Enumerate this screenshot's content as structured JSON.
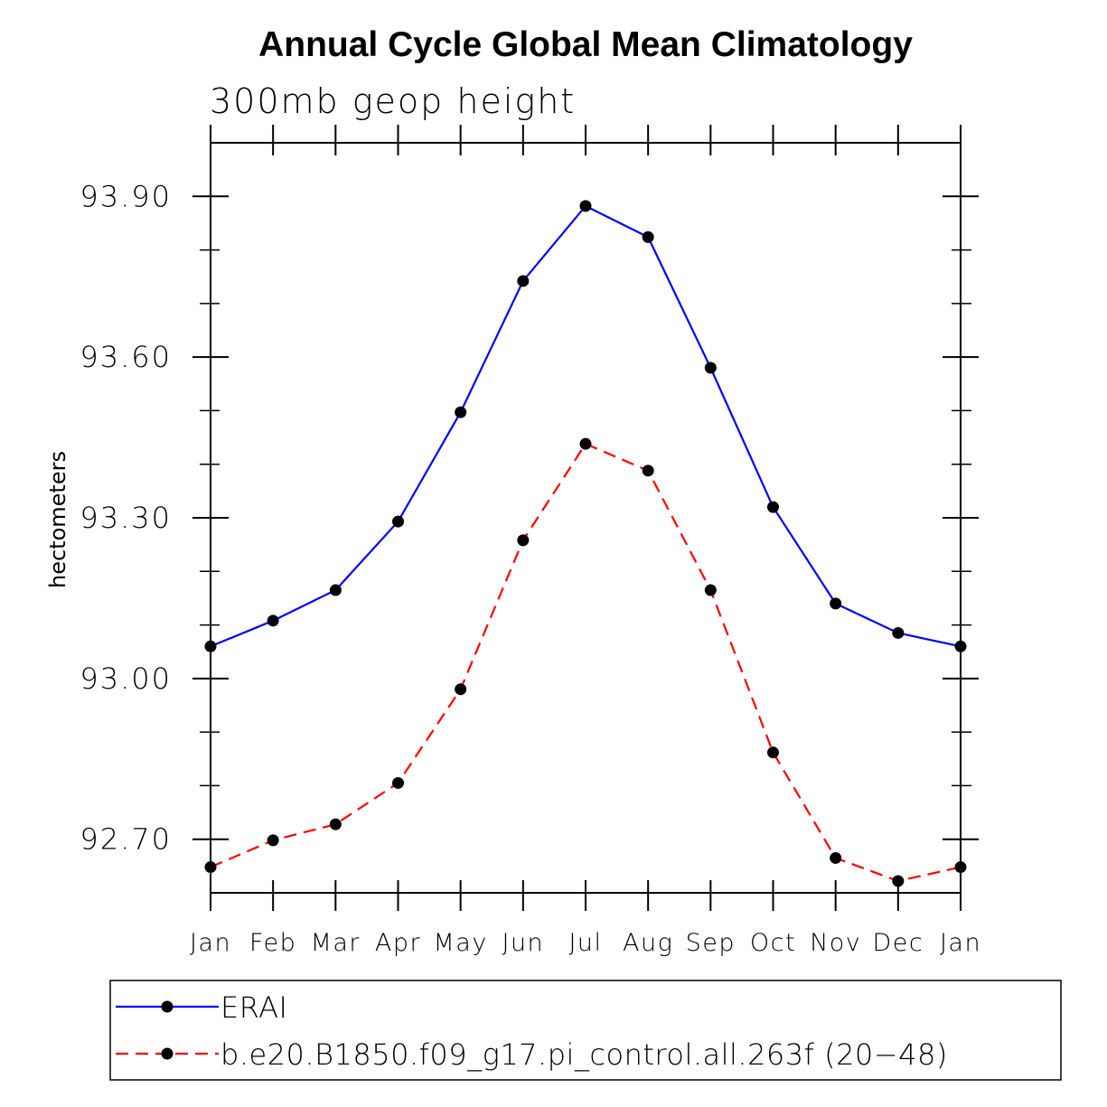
{
  "chart_data": {
    "type": "line",
    "title": "Annual Cycle Global Mean Climatology",
    "subtitle": "300mb geop height",
    "ylabel": "hectometers",
    "xlabel": "",
    "categories": [
      "Jan",
      "Feb",
      "Mar",
      "Apr",
      "May",
      "Jun",
      "Jul",
      "Aug",
      "Sep",
      "Oct",
      "Nov",
      "Dec",
      "Jan"
    ],
    "ylim": [
      92.6,
      94.0
    ],
    "y_ticks": [
      "92.70",
      "93.00",
      "93.30",
      "93.60",
      "93.90"
    ],
    "y_minor_step": 0.1,
    "grid": false,
    "legend_placement": "bottom",
    "series": [
      {
        "name": "ERAI",
        "color": "#0000ff",
        "line_style": "solid",
        "marker": "filled-circle",
        "values": [
          93.06,
          93.108,
          93.165,
          93.293,
          93.497,
          93.742,
          93.882,
          93.824,
          93.58,
          93.32,
          93.14,
          93.085,
          93.06
        ]
      },
      {
        "name": "b.e20.B1850.f09_g17.pi_control.all.263f (20−48)",
        "color": "#ff0000",
        "line_style": "dashed",
        "marker": "filled-circle",
        "values": [
          92.648,
          92.698,
          92.728,
          92.805,
          92.98,
          93.258,
          93.438,
          93.388,
          93.165,
          92.862,
          92.665,
          92.622,
          92.648
        ]
      }
    ]
  }
}
